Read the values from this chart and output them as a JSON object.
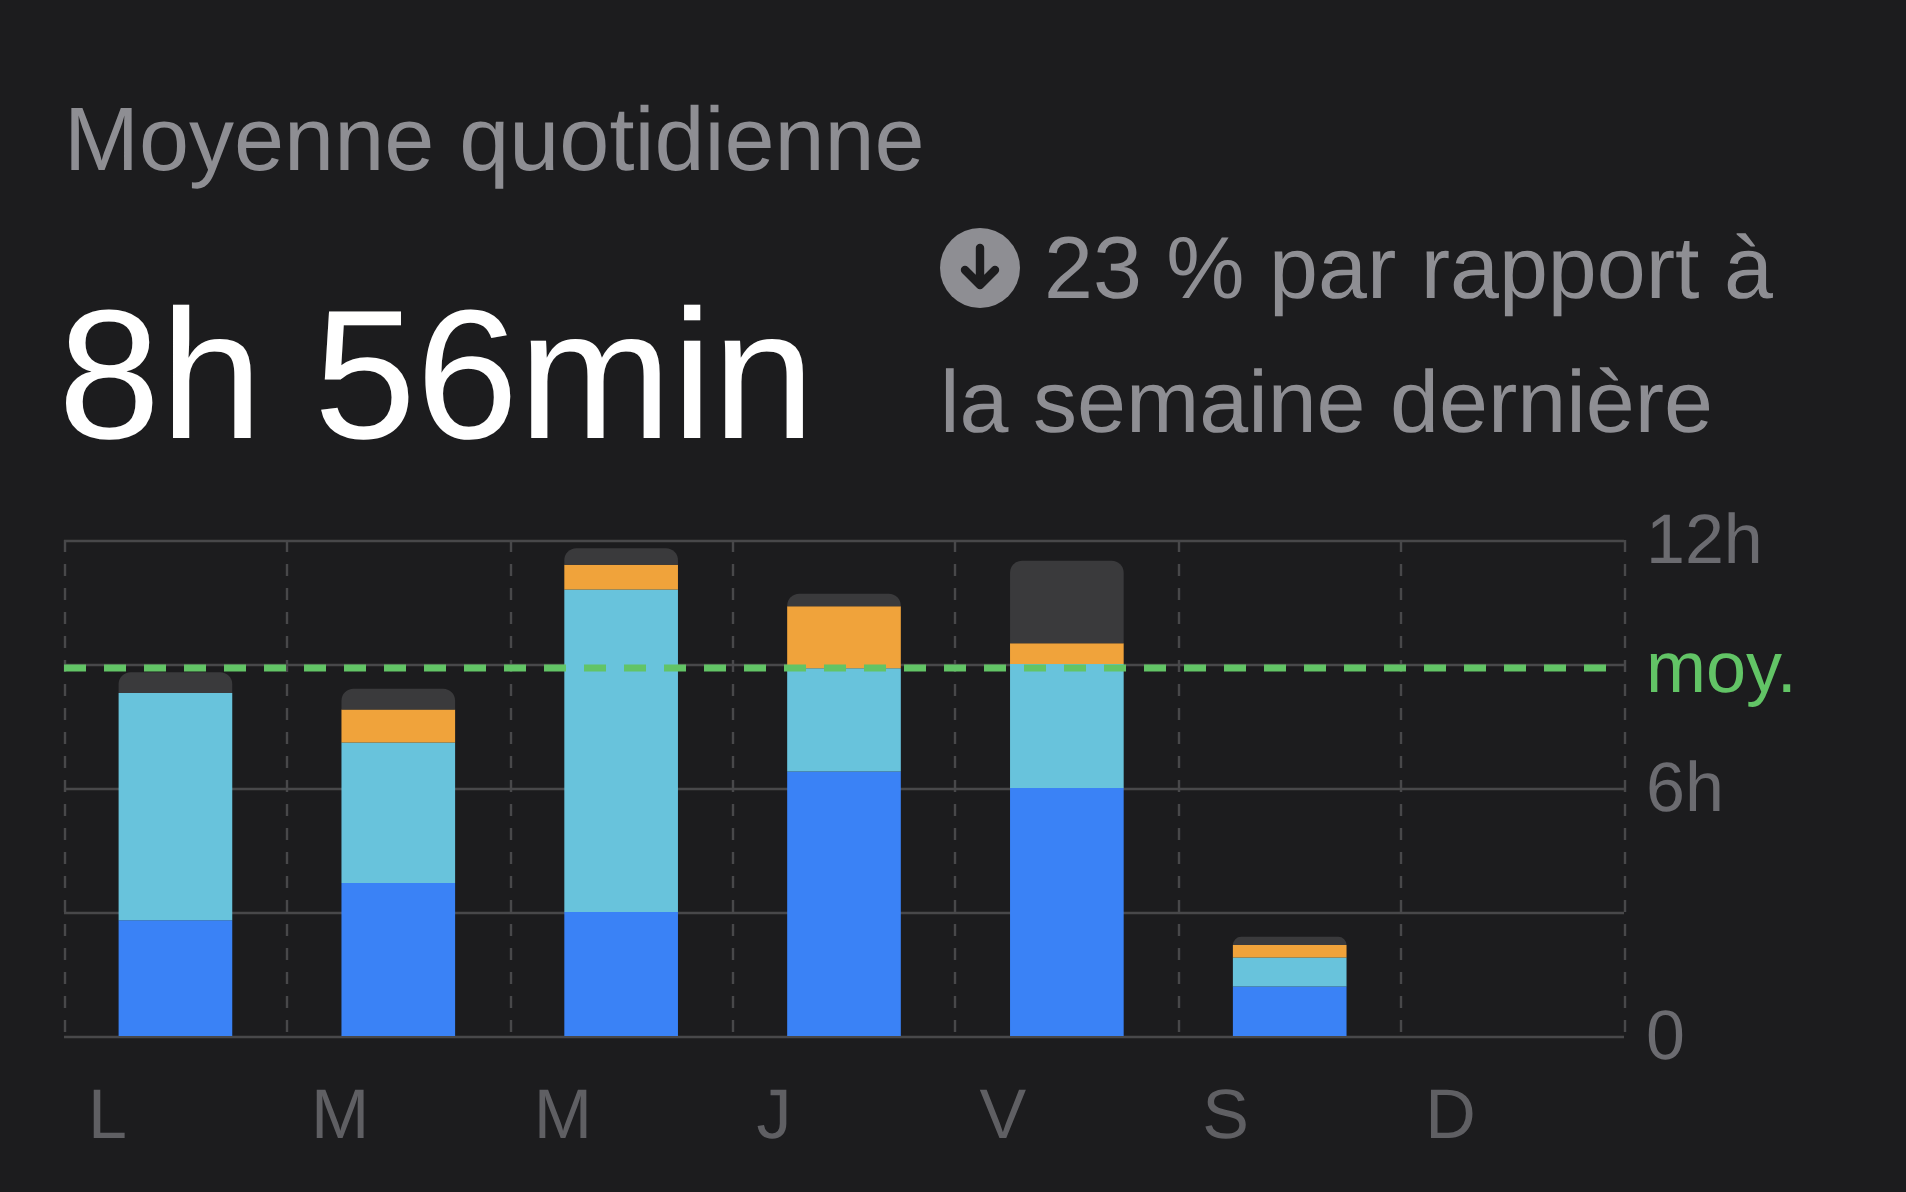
{
  "chart_data": {
    "type": "bar",
    "title": "Moyenne quotidienne",
    "subtitle": "8h 56min",
    "annotations": [
      "23 % par rapport à la semaine dernière"
    ],
    "categories": [
      "L",
      "M",
      "M",
      "J",
      "V",
      "S",
      "D"
    ],
    "series": [
      {
        "color": "#3a82f6",
        "values": [
          2.8,
          3.7,
          3.0,
          6.4,
          6.0,
          1.2,
          null
        ]
      },
      {
        "color": "#68c3dc",
        "values": [
          5.5,
          3.4,
          7.8,
          2.5,
          3.0,
          0.7,
          null
        ]
      },
      {
        "color": "#f0a33b",
        "values": [
          null,
          0.8,
          0.6,
          1.5,
          0.5,
          0.3,
          null
        ]
      },
      {
        "color": "#3a3a3c",
        "values": [
          0.5,
          0.5,
          0.4,
          0.3,
          2.0,
          0.2,
          null
        ]
      }
    ],
    "stacked": true,
    "ylim": [
      0,
      12
    ],
    "yticks": [
      0,
      {
        "value": 3,
        "label": null
      },
      {
        "value": 6,
        "label": "6h"
      },
      {
        "value": 9,
        "label": null
      },
      {
        "value": 12,
        "label": "12h"
      }
    ],
    "ref_lines": [
      {
        "axis": "y",
        "value": 8.93,
        "label": "moy.",
        "color": "#62c466",
        "line_style": "dashed"
      }
    ],
    "grid": true
  }
}
